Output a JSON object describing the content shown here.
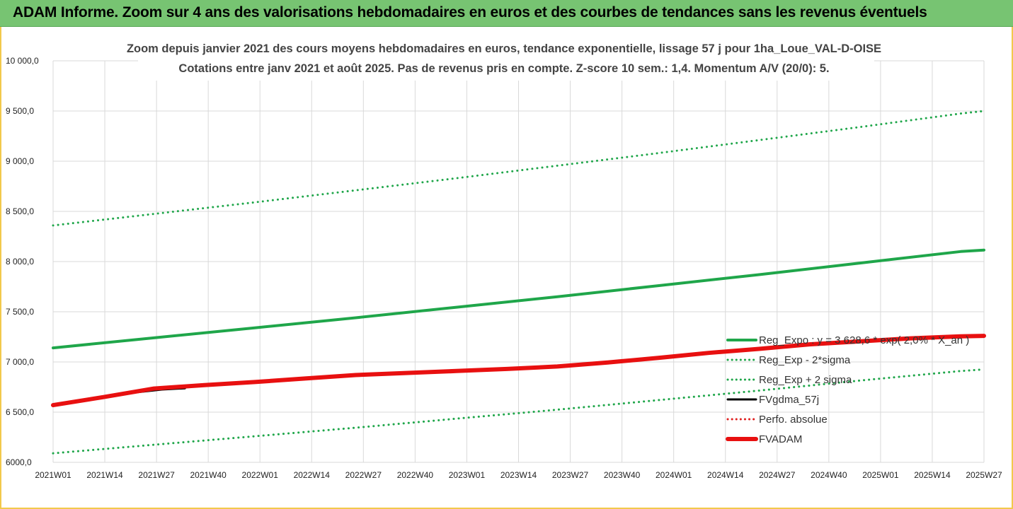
{
  "banner": {
    "title": "ADAM Informe. Zoom sur 4 ans des valorisations hebdomadaires en euros et des courbes de tendances sans les revenus éventuels"
  },
  "chart_data": {
    "type": "line",
    "title_line1": "Zoom depuis janvier 2021 des cours moyens hebdomadaires en euros, tendance exponentielle, lissage 57 j pour 1ha_Loue_VAL-D-OISE",
    "title_line2": "Cotations entre janv 2021 et août 2025.  Pas de revenus pris en compte. Z-score 10 sem.: 1,4. Momentum A/V (20/0): 5.",
    "x_tick_labels": [
      "2021W01",
      "2021W14",
      "2021W27",
      "2021W40",
      "2022W01",
      "2022W14",
      "2022W27",
      "2022W40",
      "2023W01",
      "2023W14",
      "2023W27",
      "2023W40",
      "2024W01",
      "2024W14",
      "2024W27",
      "2024W40",
      "2025W01",
      "2025W14",
      "2025W27"
    ],
    "x_range": [
      0,
      240
    ],
    "ylim": [
      6000,
      10000
    ],
    "y_ticks": [
      6000,
      6500,
      7000,
      7500,
      8000,
      8500,
      9000,
      9500,
      10000
    ],
    "y_tick_labels": [
      "6000,0",
      "6 500,0",
      "7 000,0",
      "7 500,0",
      "8 000,0",
      "8 500,0",
      "9 000,0",
      "9 500,0",
      "10 000,0"
    ],
    "grid": true,
    "legend_position": "bottom-right",
    "series": [
      {
        "name": "Reg_Expo : y = 3 628,6 * exp( 2,0% * X_an )",
        "color": "#1fa64a",
        "style": "solid",
        "width": 4,
        "points": [
          [
            0,
            7140
          ],
          [
            26,
            7240
          ],
          [
            52,
            7340
          ],
          [
            78,
            7440
          ],
          [
            104,
            7545
          ],
          [
            130,
            7650
          ],
          [
            156,
            7760
          ],
          [
            182,
            7870
          ],
          [
            208,
            7985
          ],
          [
            234,
            8100
          ],
          [
            240,
            8115
          ]
        ]
      },
      {
        "name": "Reg_Exp - 2*sigma",
        "color": "#1fa64a",
        "style": "dotted",
        "width": 3,
        "points": [
          [
            0,
            6090
          ],
          [
            26,
            6175
          ],
          [
            52,
            6260
          ],
          [
            78,
            6345
          ],
          [
            104,
            6435
          ],
          [
            130,
            6525
          ],
          [
            156,
            6620
          ],
          [
            182,
            6715
          ],
          [
            208,
            6815
          ],
          [
            234,
            6910
          ],
          [
            240,
            6925
          ]
        ]
      },
      {
        "name": "Reg_Exp + 2 sigma",
        "color": "#1fa64a",
        "style": "dotted",
        "width": 3,
        "points": [
          [
            0,
            8360
          ],
          [
            26,
            8475
          ],
          [
            52,
            8590
          ],
          [
            78,
            8710
          ],
          [
            104,
            8830
          ],
          [
            130,
            8955
          ],
          [
            156,
            9080
          ],
          [
            182,
            9210
          ],
          [
            208,
            9340
          ],
          [
            234,
            9475
          ],
          [
            240,
            9500
          ]
        ]
      },
      {
        "name": "FVgdma_57j",
        "color": "#000000",
        "style": "solid",
        "width": 3,
        "points": [
          [
            22,
            6700
          ],
          [
            28,
            6725
          ],
          [
            34,
            6738
          ]
        ]
      },
      {
        "name": "Perfo. absolue",
        "color": "#e02020",
        "style": "dotted",
        "width": 2,
        "points": []
      },
      {
        "name": "FVADAM",
        "color": "#e81010",
        "style": "solid",
        "width": 6,
        "points": [
          [
            0,
            6570
          ],
          [
            13,
            6650
          ],
          [
            26,
            6735
          ],
          [
            39,
            6770
          ],
          [
            52,
            6800
          ],
          [
            65,
            6835
          ],
          [
            78,
            6870
          ],
          [
            91,
            6890
          ],
          [
            104,
            6910
          ],
          [
            117,
            6930
          ],
          [
            130,
            6955
          ],
          [
            143,
            6995
          ],
          [
            156,
            7040
          ],
          [
            169,
            7090
          ],
          [
            182,
            7130
          ],
          [
            195,
            7175
          ],
          [
            208,
            7205
          ],
          [
            221,
            7235
          ],
          [
            234,
            7255
          ],
          [
            240,
            7260
          ]
        ]
      }
    ]
  }
}
